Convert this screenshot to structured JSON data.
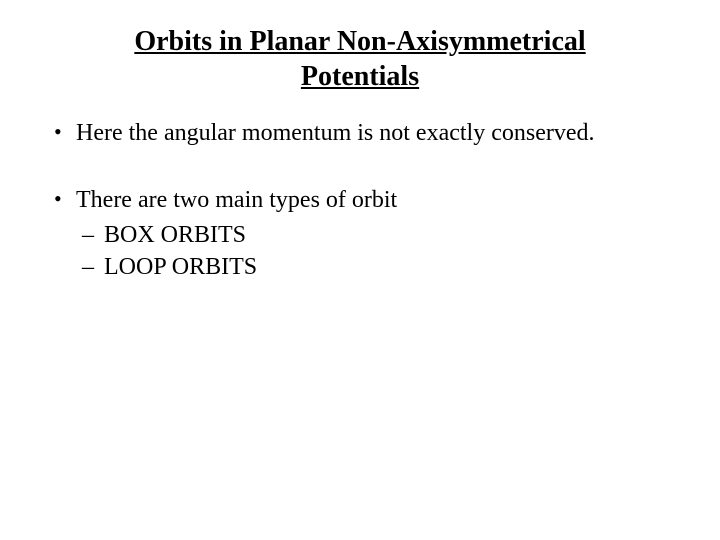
{
  "title": "Orbits in Planar Non-Axisymmetrical Potentials",
  "bullets": {
    "b1": "Here the angular momentum is not exactly conserved.",
    "b2": "There are two main types of orbit",
    "b2_sub1": "BOX ORBITS",
    "b2_sub2": "LOOP ORBITS"
  },
  "styling": {
    "background_color": "#ffffff",
    "text_color": "#000000",
    "title_fontsize": 28,
    "body_fontsize": 24,
    "font_family": "Times New Roman"
  }
}
